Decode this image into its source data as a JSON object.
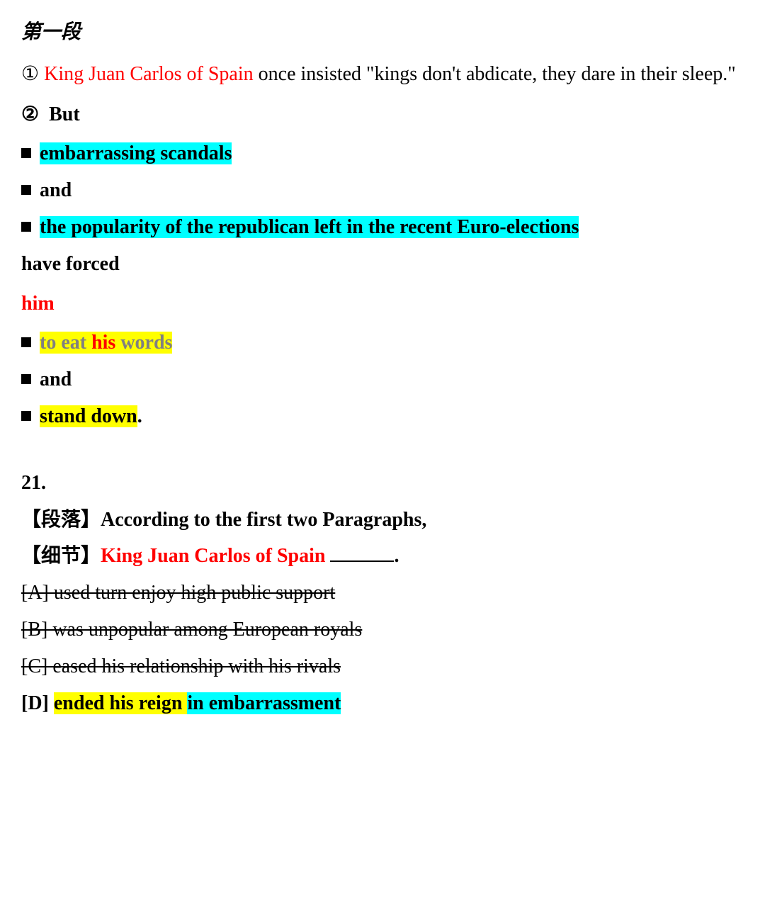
{
  "colors": {
    "red": "#ff0000",
    "cyan_highlight": "#00ffff",
    "yellow_highlight": "#ffff00",
    "gray": "#808080",
    "text": "#000000"
  },
  "heading": "第一段",
  "sentence1": {
    "num": "①",
    "subject": "King Juan Carlos of Spain",
    "rest": " once insisted \"kings don't abdicate, they dare in their sleep.\""
  },
  "sentence2": {
    "num": "②",
    "but": "But",
    "item1": "embarrassing scandals",
    "and1": "and",
    "item2": "the popularity of the republican left in the recent Euro-elections",
    "have_forced": "have forced",
    "him": "him",
    "to_eat": "to eat ",
    "his": "his",
    "words": " words",
    "and2": "and",
    "stand_down": "stand down",
    "period": "."
  },
  "question": {
    "number": "21.",
    "tag1_label": "【段落】",
    "tag1_text": "According to the first two Paragraphs,",
    "tag2_label": "【细节】",
    "tag2_text": "King Juan Carlos of Spain",
    "blank_suffix": ".",
    "optA": "[A] used turn enjoy high public support",
    "optB": "[B] was unpopular among European royals",
    "optC": "[C] eased his relationship with his rivals",
    "optD_label": "[D] ",
    "optD_part1": "ended his reign ",
    "optD_part2": "in embarrassment"
  }
}
